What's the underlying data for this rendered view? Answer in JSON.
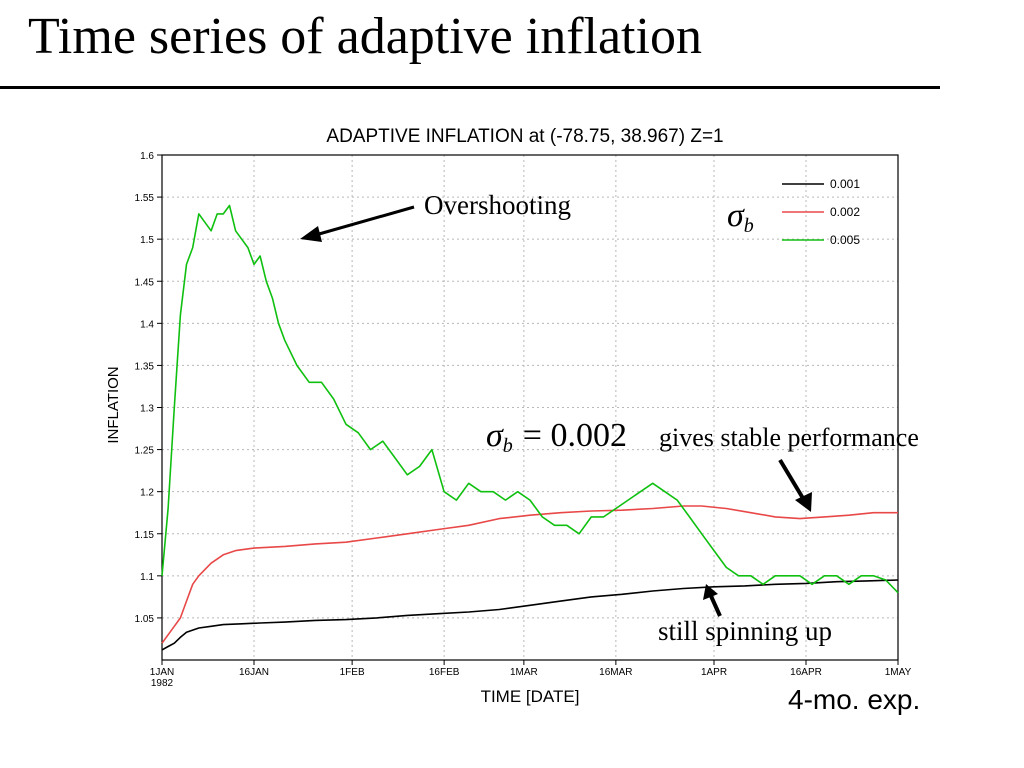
{
  "slide": {
    "title": "Time series of adaptive inflation",
    "footnote": "4-mo. exp."
  },
  "annotations": {
    "overshoot": "Overshooting",
    "stable_sigma": "σ",
    "stable_sub": "b",
    "stable_eq": "= 0.002",
    "stable_text": "gives stable performance",
    "spinning": "still spinning up",
    "legend_sigma": "σ",
    "legend_sub": "b"
  },
  "colors": {
    "s001": "#000000",
    "s002": "#e84848",
    "s005": "#10c010"
  },
  "chart_data": {
    "type": "line",
    "title": "ADAPTIVE INFLATION at (-78.75, 38.967) Z=1",
    "xlabel": "TIME [DATE]",
    "ylabel": "INFLATION",
    "x_unit": "days since 1JAN1982 00Z",
    "xlim": [
      0,
      120
    ],
    "ylim": [
      1,
      1.6
    ],
    "yticks": [
      1.05,
      1.1,
      1.15,
      1.2,
      1.25,
      1.3,
      1.35,
      1.4,
      1.45,
      1.5,
      1.55,
      1.6
    ],
    "yticklabels": [
      "1.05",
      "1.1",
      "1.15",
      "1.2",
      "1.25",
      "1.3",
      "1.35",
      "1.4",
      "1.45",
      "1.5",
      "1.55",
      "1.6"
    ],
    "xticks": [
      {
        "value": 0,
        "label": "1JAN",
        "label2": "1982"
      },
      {
        "value": 15,
        "label": "16JAN"
      },
      {
        "value": 31,
        "label": "1FEB"
      },
      {
        "value": 46,
        "label": "16FEB"
      },
      {
        "value": 59,
        "label": "1MAR"
      },
      {
        "value": 74,
        "label": "16MAR"
      },
      {
        "value": 90,
        "label": "1APR"
      },
      {
        "value": 105,
        "label": "16APR"
      },
      {
        "value": 120,
        "label": "1MAY"
      }
    ],
    "grid": true,
    "legend_position": "top-right",
    "series": [
      {
        "name": "0.001",
        "x": [
          0,
          1,
          2,
          3,
          4,
          6,
          8,
          10,
          13,
          16,
          20,
          25,
          30,
          35,
          40,
          45,
          50,
          55,
          60,
          65,
          70,
          75,
          80,
          85,
          90,
          95,
          100,
          105,
          110,
          115,
          120
        ],
        "y": [
          1.012,
          1.016,
          1.02,
          1.027,
          1.033,
          1.038,
          1.04,
          1.042,
          1.043,
          1.044,
          1.045,
          1.047,
          1.048,
          1.05,
          1.053,
          1.055,
          1.057,
          1.06,
          1.065,
          1.07,
          1.075,
          1.078,
          1.082,
          1.085,
          1.087,
          1.088,
          1.09,
          1.091,
          1.093,
          1.094,
          1.095
        ]
      },
      {
        "name": "0.002",
        "x": [
          0,
          1,
          2,
          3,
          4,
          5,
          6,
          8,
          10,
          12,
          15,
          20,
          25,
          30,
          35,
          40,
          45,
          50,
          55,
          60,
          65,
          70,
          75,
          80,
          85,
          88,
          92,
          96,
          100,
          104,
          108,
          112,
          116,
          120
        ],
        "y": [
          1.02,
          1.03,
          1.04,
          1.05,
          1.07,
          1.09,
          1.1,
          1.115,
          1.125,
          1.13,
          1.133,
          1.135,
          1.138,
          1.14,
          1.145,
          1.15,
          1.155,
          1.16,
          1.168,
          1.172,
          1.175,
          1.177,
          1.178,
          1.18,
          1.183,
          1.183,
          1.18,
          1.175,
          1.17,
          1.168,
          1.17,
          1.172,
          1.175,
          1.175
        ]
      },
      {
        "name": "0.005",
        "x": [
          0,
          1,
          2,
          3,
          4,
          5,
          6,
          7,
          8,
          9,
          10,
          11,
          12,
          13,
          14,
          15,
          16,
          17,
          18,
          19,
          20,
          22,
          24,
          26,
          28,
          30,
          32,
          34,
          36,
          38,
          40,
          42,
          44,
          46,
          48,
          50,
          52,
          54,
          56,
          58,
          60,
          62,
          64,
          66,
          68,
          70,
          72,
          74,
          76,
          78,
          80,
          82,
          84,
          86,
          88,
          90,
          92,
          94,
          96,
          98,
          100,
          102,
          104,
          106,
          108,
          110,
          112,
          114,
          116,
          118,
          120
        ],
        "y": [
          1.1,
          1.18,
          1.3,
          1.41,
          1.47,
          1.49,
          1.53,
          1.52,
          1.51,
          1.53,
          1.53,
          1.54,
          1.51,
          1.5,
          1.49,
          1.47,
          1.48,
          1.45,
          1.43,
          1.4,
          1.38,
          1.35,
          1.33,
          1.33,
          1.31,
          1.28,
          1.27,
          1.25,
          1.26,
          1.24,
          1.22,
          1.23,
          1.25,
          1.2,
          1.19,
          1.21,
          1.2,
          1.2,
          1.19,
          1.2,
          1.19,
          1.17,
          1.16,
          1.16,
          1.15,
          1.17,
          1.17,
          1.18,
          1.19,
          1.2,
          1.21,
          1.2,
          1.19,
          1.17,
          1.15,
          1.13,
          1.11,
          1.1,
          1.1,
          1.09,
          1.1,
          1.1,
          1.1,
          1.09,
          1.1,
          1.1,
          1.09,
          1.1,
          1.1,
          1.095,
          1.08
        ]
      }
    ]
  }
}
